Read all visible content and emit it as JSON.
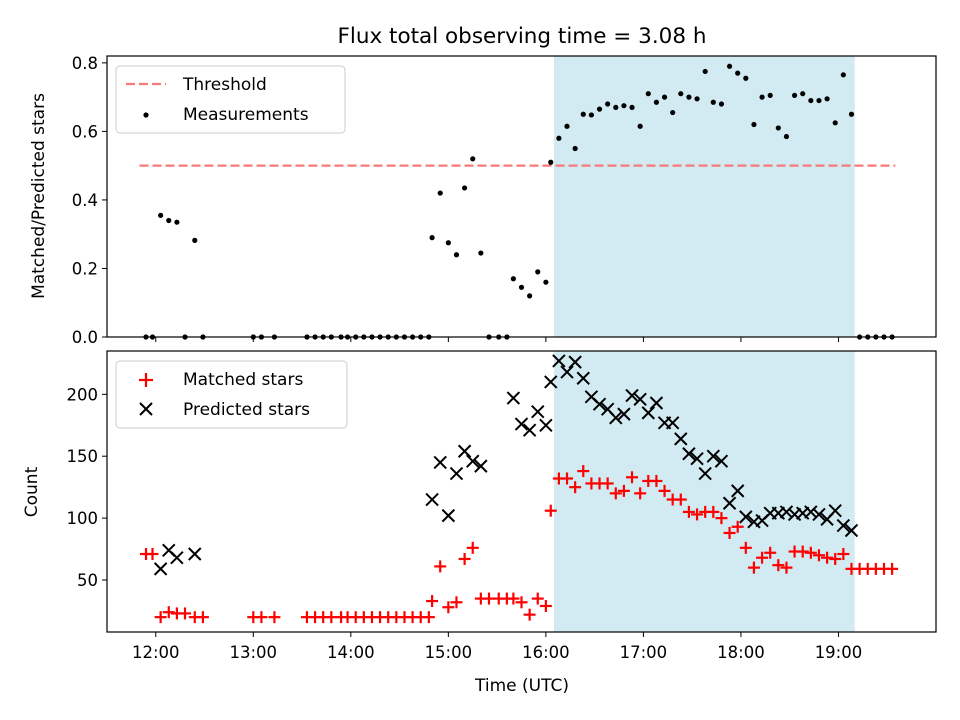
{
  "title": "Flux total observing time = 3.08 h",
  "xlabel": "Time (UTC)",
  "chart_data": [
    {
      "type": "scatter",
      "ylabel": "Matched/Predicted stars",
      "ylim": [
        0,
        0.82
      ],
      "yticks": [
        "0.0",
        "0.2",
        "0.4",
        "0.6",
        "0.8"
      ],
      "ytick_values": [
        0,
        0.2,
        0.4,
        0.6,
        0.8
      ],
      "legend": {
        "placement": "upper-left",
        "entries": [
          {
            "label": "Threshold",
            "style": "dashed-line",
            "color": "#f77a7a"
          },
          {
            "label": "Measurements",
            "style": "dot",
            "color": "#000000"
          }
        ]
      },
      "threshold": {
        "y": 0.5,
        "x_start": "11:50",
        "x_end": "19:35",
        "color": "#f77a7a"
      },
      "observing_window": {
        "start": "16:05",
        "end": "19:10",
        "color": "#add8e6"
      },
      "series": [
        {
          "name": "Measurements",
          "points": [
            [
              "11:54",
              0.0
            ],
            [
              "11:58",
              0.0
            ],
            [
              "12:03",
              0.355
            ],
            [
              "12:08",
              0.34
            ],
            [
              "12:13",
              0.335
            ],
            [
              "12:18",
              0.0
            ],
            [
              "12:24",
              0.282
            ],
            [
              "12:29",
              0.0
            ],
            [
              "13:00",
              0.0
            ],
            [
              "13:05",
              0.0
            ],
            [
              "13:13",
              0.0
            ],
            [
              "13:33",
              0.0
            ],
            [
              "13:38",
              0.0
            ],
            [
              "13:43",
              0.0
            ],
            [
              "13:48",
              0.0
            ],
            [
              "13:54",
              0.0
            ],
            [
              "13:58",
              0.0
            ],
            [
              "14:03",
              0.0
            ],
            [
              "14:08",
              0.0
            ],
            [
              "14:13",
              0.0
            ],
            [
              "14:18",
              0.0
            ],
            [
              "14:23",
              0.0
            ],
            [
              "14:28",
              0.0
            ],
            [
              "14:33",
              0.0
            ],
            [
              "14:38",
              0.0
            ],
            [
              "14:43",
              0.0
            ],
            [
              "14:48",
              0.0
            ],
            [
              "14:50",
              0.29
            ],
            [
              "14:55",
              0.42
            ],
            [
              "15:00",
              0.275
            ],
            [
              "15:05",
              0.24
            ],
            [
              "15:10",
              0.435
            ],
            [
              "15:15",
              0.52
            ],
            [
              "15:20",
              0.245
            ],
            [
              "15:25",
              0.0
            ],
            [
              "15:31",
              0.0
            ],
            [
              "15:36",
              0.0
            ],
            [
              "15:40",
              0.17
            ],
            [
              "15:45",
              0.145
            ],
            [
              "15:50",
              0.12
            ],
            [
              "15:55",
              0.19
            ],
            [
              "16:00",
              0.16
            ],
            [
              "16:03",
              0.51
            ],
            [
              "16:08",
              0.58
            ],
            [
              "16:13",
              0.615
            ],
            [
              "16:18",
              0.55
            ],
            [
              "16:23",
              0.65
            ],
            [
              "16:28",
              0.648
            ],
            [
              "16:33",
              0.665
            ],
            [
              "16:38",
              0.68
            ],
            [
              "16:43",
              0.67
            ],
            [
              "16:48",
              0.675
            ],
            [
              "16:53",
              0.67
            ],
            [
              "16:58",
              0.615
            ],
            [
              "17:03",
              0.71
            ],
            [
              "17:08",
              0.685
            ],
            [
              "17:13",
              0.7
            ],
            [
              "17:18",
              0.655
            ],
            [
              "17:23",
              0.71
            ],
            [
              "17:28",
              0.7
            ],
            [
              "17:33",
              0.695
            ],
            [
              "17:38",
              0.775
            ],
            [
              "17:43",
              0.685
            ],
            [
              "17:48",
              0.68
            ],
            [
              "17:53",
              0.79
            ],
            [
              "17:58",
              0.77
            ],
            [
              "18:03",
              0.755
            ],
            [
              "18:08",
              0.62
            ],
            [
              "18:13",
              0.7
            ],
            [
              "18:18",
              0.705
            ],
            [
              "18:23",
              0.61
            ],
            [
              "18:28",
              0.585
            ],
            [
              "18:33",
              0.705
            ],
            [
              "18:38",
              0.71
            ],
            [
              "18:43",
              0.69
            ],
            [
              "18:48",
              0.69
            ],
            [
              "18:53",
              0.695
            ],
            [
              "18:58",
              0.625
            ],
            [
              "19:03",
              0.765
            ],
            [
              "19:08",
              0.65
            ],
            [
              "19:13",
              0.0
            ],
            [
              "19:18",
              0.0
            ],
            [
              "19:23",
              0.0
            ],
            [
              "19:28",
              0.0
            ],
            [
              "19:33",
              0.0
            ]
          ]
        }
      ]
    },
    {
      "type": "scatter",
      "ylabel": "Count",
      "ylim": [
        8,
        235
      ],
      "yticks": [
        "50",
        "100",
        "150",
        "200"
      ],
      "ytick_values": [
        50,
        100,
        150,
        200
      ],
      "xticks": [
        "12:00",
        "13:00",
        "14:00",
        "15:00",
        "16:00",
        "17:00",
        "18:00",
        "19:00"
      ],
      "xlim": [
        "11:30",
        "20:00"
      ],
      "legend": {
        "placement": "upper-left",
        "entries": [
          {
            "label": "Matched stars",
            "style": "plus",
            "color": "#ff0000"
          },
          {
            "label": "Predicted stars",
            "style": "x",
            "color": "#000000"
          }
        ]
      },
      "observing_window": {
        "start": "16:05",
        "end": "19:10",
        "color": "#add8e6"
      },
      "series": [
        {
          "name": "Matched stars",
          "marker": "plus",
          "color": "#ff0000",
          "points": [
            [
              "11:54",
              71
            ],
            [
              "11:58",
              71
            ],
            [
              "12:03",
              20
            ],
            [
              "12:08",
              24
            ],
            [
              "12:13",
              23
            ],
            [
              "12:18",
              23
            ],
            [
              "12:24",
              20
            ],
            [
              "12:29",
              20
            ],
            [
              "13:00",
              20
            ],
            [
              "13:05",
              20
            ],
            [
              "13:13",
              20
            ],
            [
              "13:33",
              20
            ],
            [
              "13:38",
              20
            ],
            [
              "13:43",
              20
            ],
            [
              "13:48",
              20
            ],
            [
              "13:54",
              20
            ],
            [
              "13:58",
              20
            ],
            [
              "14:03",
              20
            ],
            [
              "14:08",
              20
            ],
            [
              "14:13",
              20
            ],
            [
              "14:18",
              20
            ],
            [
              "14:23",
              20
            ],
            [
              "14:28",
              20
            ],
            [
              "14:33",
              20
            ],
            [
              "14:38",
              20
            ],
            [
              "14:43",
              20
            ],
            [
              "14:48",
              20
            ],
            [
              "14:50",
              33
            ],
            [
              "14:55",
              61
            ],
            [
              "15:00",
              28
            ],
            [
              "15:05",
              32
            ],
            [
              "15:10",
              67
            ],
            [
              "15:15",
              76
            ],
            [
              "15:20",
              35
            ],
            [
              "15:25",
              35
            ],
            [
              "15:31",
              35
            ],
            [
              "15:36",
              35
            ],
            [
              "15:40",
              35
            ],
            [
              "15:45",
              32
            ],
            [
              "15:50",
              22
            ],
            [
              "15:55",
              35
            ],
            [
              "16:00",
              29
            ],
            [
              "16:03",
              106
            ],
            [
              "16:08",
              132
            ],
            [
              "16:13",
              132
            ],
            [
              "16:18",
              125
            ],
            [
              "16:23",
              138
            ],
            [
              "16:28",
              128
            ],
            [
              "16:33",
              128
            ],
            [
              "16:38",
              128
            ],
            [
              "16:43",
              120
            ],
            [
              "16:48",
              122
            ],
            [
              "16:53",
              133
            ],
            [
              "16:58",
              120
            ],
            [
              "17:03",
              130
            ],
            [
              "17:08",
              130
            ],
            [
              "17:13",
              122
            ],
            [
              "17:18",
              115
            ],
            [
              "17:23",
              115
            ],
            [
              "17:28",
              105
            ],
            [
              "17:33",
              103
            ],
            [
              "17:38",
              105
            ],
            [
              "17:43",
              105
            ],
            [
              "17:48",
              100
            ],
            [
              "17:53",
              88
            ],
            [
              "17:58",
              93
            ],
            [
              "18:03",
              76
            ],
            [
              "18:08",
              60
            ],
            [
              "18:13",
              68
            ],
            [
              "18:18",
              72
            ],
            [
              "18:23",
              62
            ],
            [
              "18:28",
              60
            ],
            [
              "18:33",
              73
            ],
            [
              "18:38",
              73
            ],
            [
              "18:43",
              72
            ],
            [
              "18:48",
              70
            ],
            [
              "18:53",
              68
            ],
            [
              "18:58",
              67
            ],
            [
              "19:03",
              71
            ],
            [
              "19:08",
              59
            ],
            [
              "19:13",
              59
            ],
            [
              "19:18",
              59
            ],
            [
              "19:23",
              59
            ],
            [
              "19:28",
              59
            ],
            [
              "19:33",
              59
            ]
          ]
        },
        {
          "name": "Predicted stars",
          "marker": "x",
          "color": "#000000",
          "points": [
            [
              "12:03",
              59
            ],
            [
              "12:08",
              74
            ],
            [
              "12:13",
              68
            ],
            [
              "12:24",
              71
            ],
            [
              "14:50",
              115
            ],
            [
              "14:55",
              145
            ],
            [
              "15:00",
              102
            ],
            [
              "15:05",
              136
            ],
            [
              "15:10",
              154
            ],
            [
              "15:15",
              146
            ],
            [
              "15:20",
              142
            ],
            [
              "15:40",
              197
            ],
            [
              "15:45",
              176
            ],
            [
              "15:50",
              171
            ],
            [
              "15:55",
              186
            ],
            [
              "16:00",
              175
            ],
            [
              "16:03",
              210
            ],
            [
              "16:08",
              227
            ],
            [
              "16:13",
              218
            ],
            [
              "16:18",
              226
            ],
            [
              "16:23",
              213
            ],
            [
              "16:28",
              198
            ],
            [
              "16:33",
              192
            ],
            [
              "16:38",
              188
            ],
            [
              "16:43",
              181
            ],
            [
              "16:48",
              184
            ],
            [
              "16:53",
              199
            ],
            [
              "16:58",
              196
            ],
            [
              "17:03",
              185
            ],
            [
              "17:08",
              193
            ],
            [
              "17:13",
              177
            ],
            [
              "17:18",
              177
            ],
            [
              "17:23",
              164
            ],
            [
              "17:28",
              152
            ],
            [
              "17:33",
              148
            ],
            [
              "17:38",
              136
            ],
            [
              "17:43",
              150
            ],
            [
              "17:48",
              146
            ],
            [
              "17:53",
              112
            ],
            [
              "17:58",
              122
            ],
            [
              "18:03",
              101
            ],
            [
              "18:08",
              97
            ],
            [
              "18:13",
              98
            ],
            [
              "18:18",
              104
            ],
            [
              "18:23",
              104
            ],
            [
              "18:28",
              105
            ],
            [
              "18:33",
              103
            ],
            [
              "18:38",
              104
            ],
            [
              "18:43",
              105
            ],
            [
              "18:48",
              103
            ],
            [
              "18:53",
              99
            ],
            [
              "18:58",
              106
            ],
            [
              "19:03",
              94
            ],
            [
              "19:08",
              90
            ]
          ]
        }
      ]
    }
  ]
}
